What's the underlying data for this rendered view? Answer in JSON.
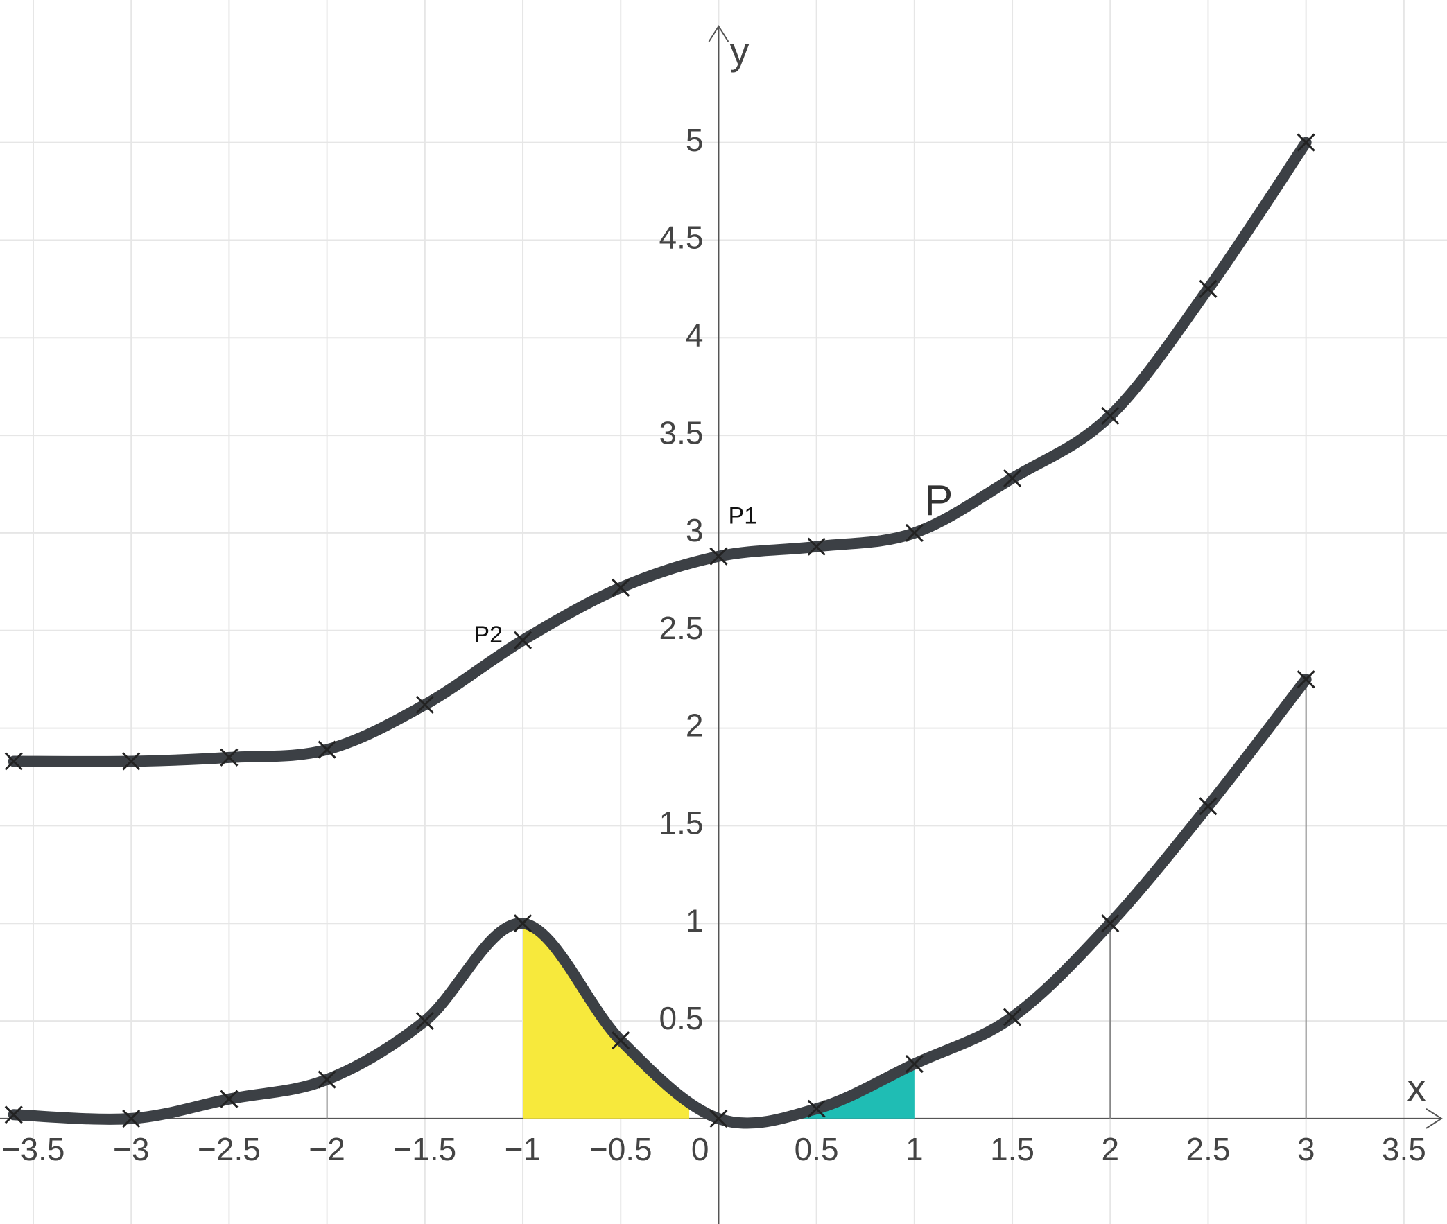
{
  "chart_data": {
    "type": "line",
    "x_label": "x",
    "y_label": "y",
    "x": [
      -3.6,
      -3,
      -2.5,
      -2,
      -1.5,
      -1,
      -0.5,
      0,
      0.5,
      1,
      1.5,
      2,
      2.5,
      3
    ],
    "series": [
      {
        "color": "#3c4045",
        "values": [
          1.83,
          1.83,
          1.85,
          1.89,
          2.12,
          2.45,
          2.72,
          2.88,
          2.93,
          3,
          3.28,
          3.6,
          4.25,
          5
        ]
      },
      {
        "color": "#3c4045",
        "values": [
          0.02,
          0,
          0.1,
          0.2,
          0.5,
          1,
          0.4,
          0,
          0.05,
          0.28,
          0.52,
          1,
          1.6,
          2.25
        ]
      }
    ],
    "shaded_regions": [
      {
        "from": -1,
        "to": -0.15,
        "color": "#f7e93c"
      },
      {
        "from": 0.3,
        "to": 1,
        "color": "#1fbdb4"
      }
    ],
    "drop_lines": [
      -2,
      2,
      3
    ],
    "annotations": [
      {
        "text": "P1",
        "x": 0.05,
        "y": 3.08
      },
      {
        "text": "P2",
        "x": -1.25,
        "y": 2.47
      },
      {
        "text": "P",
        "x": 1.05,
        "y": 3.15
      }
    ],
    "xlim": [
      -3.67,
      3.72
    ],
    "ylim": [
      -0.54,
      5.73
    ],
    "xticks": [
      {
        "value": -3.5,
        "label": "−3.5"
      },
      {
        "value": -3,
        "label": "−3"
      },
      {
        "value": -2.5,
        "label": "−2.5"
      },
      {
        "value": -2,
        "label": "−2"
      },
      {
        "value": -1.5,
        "label": "−1.5"
      },
      {
        "value": -1,
        "label": "−1"
      },
      {
        "value": -0.5,
        "label": "−0.5"
      },
      0,
      0.5,
      1,
      1.5,
      2,
      2.5,
      3,
      3.5
    ],
    "yticks": [
      0.5,
      1,
      1.5,
      2,
      2.5,
      3,
      3.5,
      4,
      4.5,
      5
    ],
    "grid": true
  }
}
